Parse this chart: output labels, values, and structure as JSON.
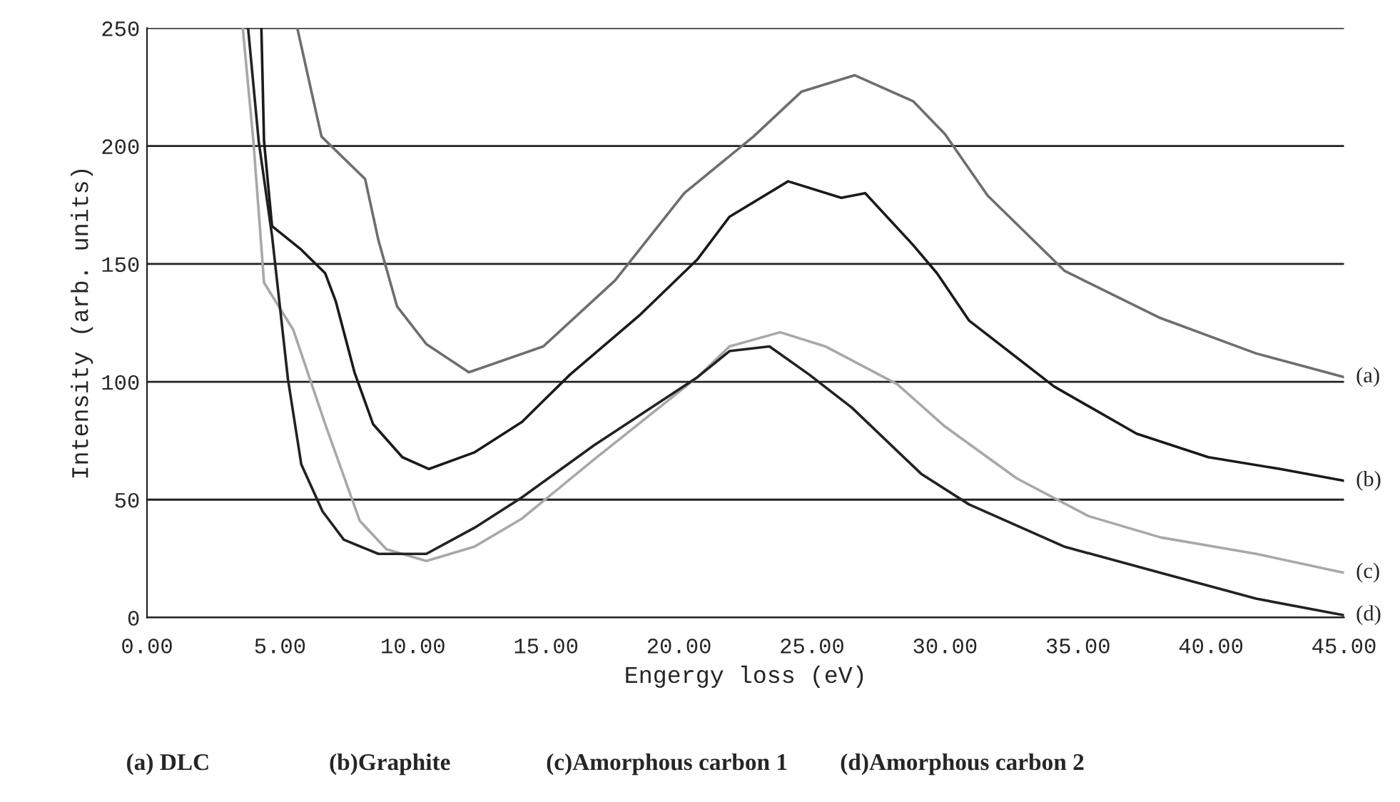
{
  "chart_data": {
    "type": "line",
    "xlabel": "Engergy loss (eV)",
    "ylabel": "Intensity (arb. units)",
    "xlim": [
      0,
      45
    ],
    "ylim": [
      0,
      250
    ],
    "xticks": [
      {
        "value": 0,
        "label": "0.00"
      },
      {
        "value": 5,
        "label": "5.00"
      },
      {
        "value": 10,
        "label": "10.00"
      },
      {
        "value": 15,
        "label": "15.00"
      },
      {
        "value": 20,
        "label": "20.00"
      },
      {
        "value": 25,
        "label": "25.00"
      },
      {
        "value": 30,
        "label": "30.00"
      },
      {
        "value": 35,
        "label": "35.00"
      },
      {
        "value": 40,
        "label": "40.00"
      },
      {
        "value": 45,
        "label": "45.00"
      }
    ],
    "yticks": [
      0,
      50,
      100,
      150,
      200,
      250
    ],
    "grid": "y",
    "legend": false,
    "marker": "none",
    "line_style": "solid",
    "series": [
      {
        "name": "(a)",
        "color": "#6e6e6e",
        "x": [
          5.65,
          6.56,
          8.2,
          8.7,
          9.4,
          10.5,
          12.1,
          14.9,
          17.6,
          20.2,
          22.8,
          24.6,
          26.6,
          28.8,
          30,
          31.6,
          34.5,
          38.1,
          41.7,
          45
        ],
        "values": [
          250,
          204,
          186,
          160,
          132,
          116,
          104,
          115,
          143,
          180,
          204,
          223,
          230,
          219,
          205,
          179,
          147,
          127,
          112,
          102
        ]
      },
      {
        "name": "(b)",
        "color": "#1a1a1a",
        "x": [
          4.3,
          4.4,
          4.7,
          5.8,
          6.7,
          7.1,
          7.8,
          8.5,
          9.6,
          10.6,
          12.3,
          14.1,
          15.9,
          18.5,
          20.7,
          21.9,
          24.1,
          26.1,
          27,
          28.8,
          29.7,
          30.9,
          34.1,
          37.2,
          39.9,
          42.6,
          45
        ],
        "values": [
          250,
          202,
          166,
          156,
          146,
          134,
          104,
          82,
          68,
          63,
          70,
          83,
          103,
          128,
          152,
          170,
          185,
          178,
          180,
          158,
          146,
          126,
          98,
          78,
          68,
          63,
          58
        ]
      },
      {
        "name": "(c)",
        "color": "#a8a8a8",
        "x": [
          3.6,
          4.0,
          4.4,
          5.5,
          6.7,
          8.0,
          9.0,
          10.5,
          12.3,
          14.1,
          16.8,
          20.7,
          21.9,
          23.8,
          25.5,
          28.2,
          30,
          32.7,
          35.4,
          38.1,
          41.7,
          45
        ],
        "values": [
          250,
          202,
          142,
          122,
          82,
          41,
          29,
          24,
          30,
          42,
          67,
          102,
          115,
          121,
          115,
          99,
          81,
          59,
          43,
          34,
          27,
          19
        ]
      },
      {
        "name": "(d)",
        "color": "#222222",
        "x": [
          3.8,
          4.2,
          4.7,
          5.3,
          5.8,
          6.6,
          7.4,
          8.7,
          10.5,
          12.3,
          14.1,
          16.8,
          20.7,
          21.9,
          23.4,
          24.9,
          26.5,
          29.1,
          30.9,
          34.5,
          38.1,
          41.7,
          45
        ],
        "values": [
          250,
          202,
          162,
          101,
          65,
          45,
          33,
          27,
          27,
          38,
          51,
          73,
          102,
          113,
          115,
          103,
          89,
          61,
          48,
          30,
          19,
          8,
          1
        ]
      }
    ],
    "annotations": [
      "(a) DLC",
      "(b)Graphite",
      "(c)Amorphous carbon 1",
      "(d)Amorphous carbon 2"
    ]
  }
}
